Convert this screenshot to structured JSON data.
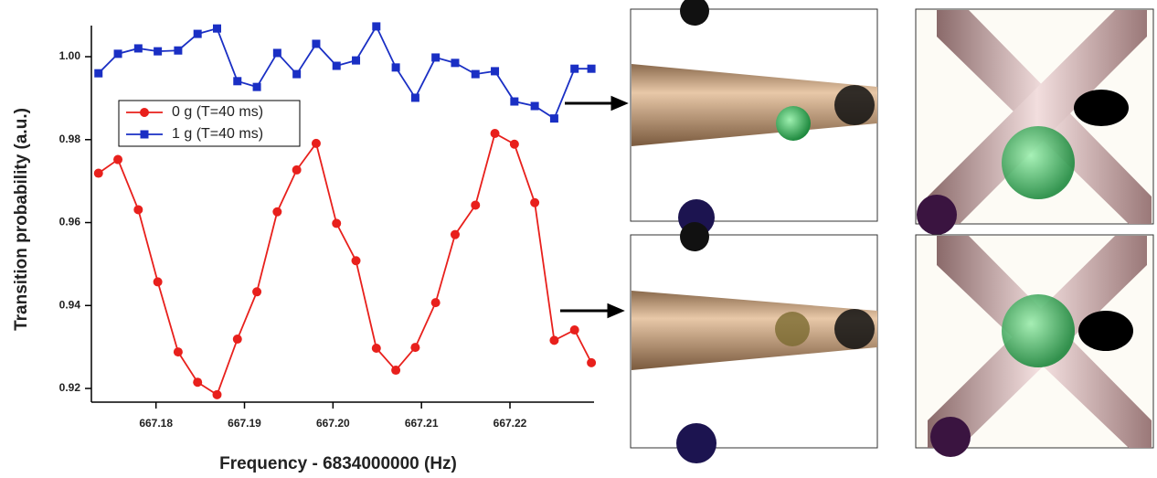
{
  "chart_data": {
    "type": "line",
    "x_label": "Frequency - 6834000000 (Hz)",
    "y_label": "Transition probability (a.u.)",
    "x": [
      667.1735,
      667.1757,
      667.178,
      667.1802,
      667.1825,
      667.1847,
      667.1869,
      667.1892,
      667.1914,
      667.1937,
      667.1959,
      667.1981,
      667.2004,
      667.2026,
      667.2049,
      667.2071,
      667.2093,
      667.2116,
      667.2138,
      667.2161,
      667.2183,
      667.2205,
      667.2228,
      667.225,
      667.2273,
      667.2292
    ],
    "series": [
      {
        "name": "0 g (T=40 ms)",
        "color": "#e8201c",
        "marker": "circle",
        "values": [
          0.9719,
          0.9752,
          0.9631,
          0.9457,
          0.9288,
          0.9215,
          0.9185,
          0.9319,
          0.9433,
          0.9626,
          0.9727,
          0.9791,
          0.9598,
          0.9508,
          0.9297,
          0.9244,
          0.9299,
          0.9407,
          0.9571,
          0.9642,
          0.9815,
          0.9789,
          0.9648,
          0.9316,
          0.9341,
          0.9262
        ]
      },
      {
        "name": "1 g (T=40 ms)",
        "color": "#1a2fc4",
        "marker": "square",
        "values": [
          0.996,
          1.0007,
          1.002,
          1.0013,
          1.0015,
          1.0055,
          1.0068,
          0.9941,
          0.9927,
          1.0009,
          0.9958,
          1.0031,
          0.9978,
          0.9991,
          1.0073,
          0.9974,
          0.9901,
          0.9998,
          0.9985,
          0.9958,
          0.9965,
          0.9892,
          0.9881,
          0.9851,
          0.9971,
          0.9971
        ]
      }
    ],
    "xlim": [
      667.1727,
      667.2295
    ],
    "xticks": [
      667.18,
      667.19,
      {
        "value": 667.2,
        "label": "667.20"
      },
      667.21,
      667.22
    ],
    "ylim": [
      0.9167,
      1.0075
    ],
    "yticks": [
      0.92,
      0.94,
      0.96,
      0.98,
      {
        "value": 1,
        "label": "1.00"
      }
    ],
    "legend": "upper-left"
  }
}
